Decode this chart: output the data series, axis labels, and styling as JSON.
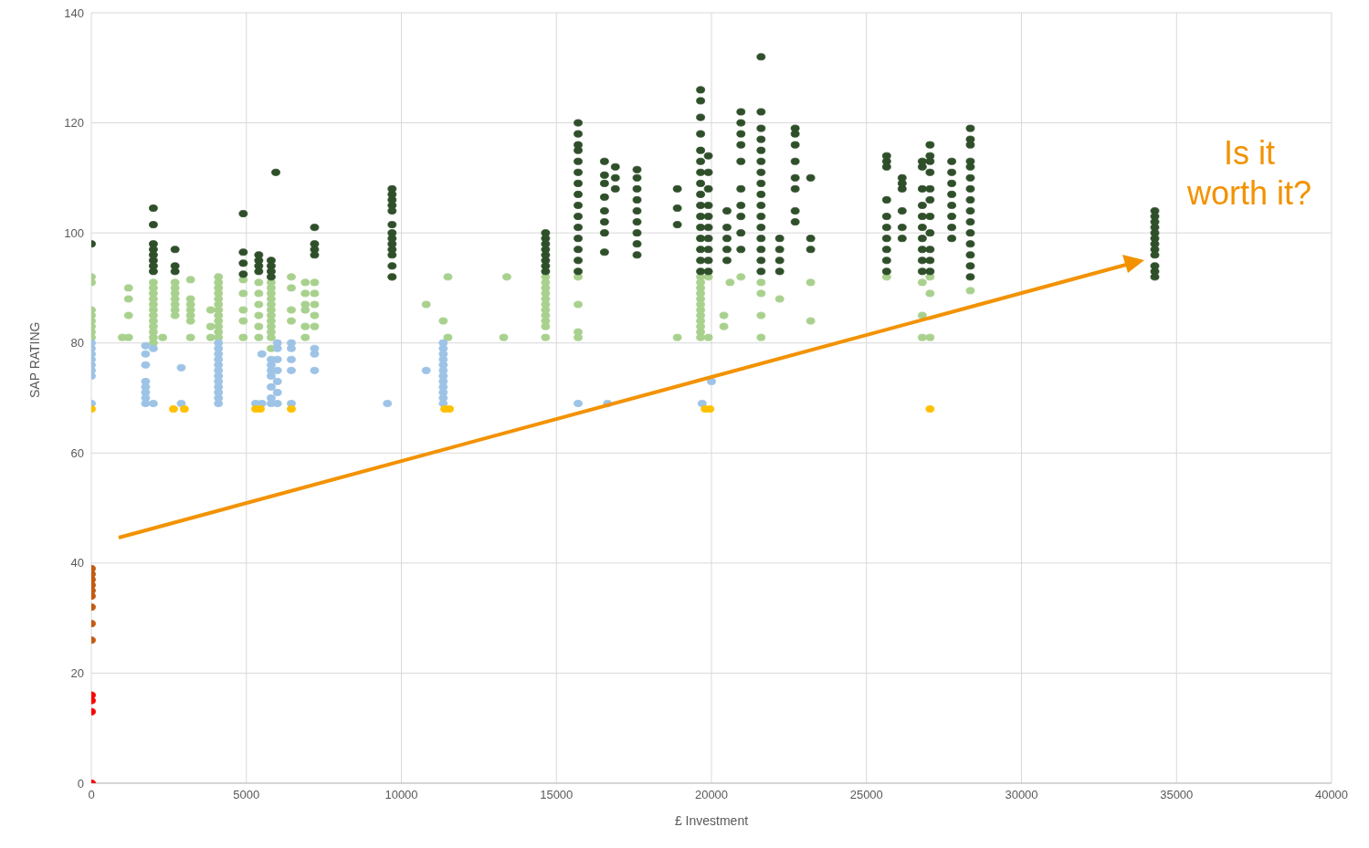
{
  "chart_data": {
    "type": "scatter",
    "xlabel": "£ Investment",
    "ylabel": "SAP RATING",
    "xlim": [
      0,
      40000
    ],
    "xticks": [
      0,
      5000,
      10000,
      15000,
      20000,
      25000,
      30000,
      35000,
      40000
    ],
    "ylim": [
      0,
      140
    ],
    "yticks": [
      0,
      20,
      40,
      60,
      80,
      100,
      120,
      140
    ],
    "grid": true,
    "legend": false,
    "marker": "circle",
    "annotations": [
      "Is it worth it?"
    ],
    "series": [
      {
        "color": "#a9d18e",
        "x": [
          0,
          0,
          0,
          0,
          0,
          0,
          0,
          0,
          1000,
          1200,
          1200,
          1200,
          1200,
          2000,
          2000,
          2000,
          2000,
          2000,
          2000,
          2000,
          2000,
          2000,
          2000,
          2000,
          2000,
          2300,
          2700,
          2700,
          2700,
          2700,
          2700,
          2700,
          2700,
          3200,
          3200,
          3200,
          3200,
          3200,
          3200,
          3200,
          3850,
          3850,
          3850,
          4100,
          4100,
          4100,
          4100,
          4100,
          4100,
          4100,
          4100,
          4100,
          4100,
          4100,
          4100,
          4900,
          4900,
          4900,
          4900,
          4900,
          5400,
          5400,
          5400,
          5400,
          5400,
          5400,
          5800,
          5800,
          5800,
          5800,
          5800,
          5800,
          5800,
          5800,
          5800,
          5800,
          5800,
          5800,
          6450,
          6450,
          6450,
          6450,
          6900,
          6900,
          6900,
          6900,
          6900,
          6900,
          7200,
          7200,
          7200,
          7200,
          7200,
          9700,
          10800,
          11350,
          11500,
          11500,
          13300,
          13400,
          14650,
          14650,
          14650,
          14650,
          14650,
          14650,
          14650,
          14650,
          14650,
          14650,
          14650,
          15700,
          15700,
          15700,
          15700,
          18900,
          19650,
          19650,
          19650,
          19650,
          19650,
          19650,
          19650,
          19650,
          19650,
          19650,
          19650,
          19650,
          19900,
          19900,
          20400,
          20400,
          20600,
          20950,
          21600,
          21600,
          21600,
          21600,
          22200,
          23200,
          23200,
          25650,
          26800,
          26800,
          26800,
          27050,
          27050,
          27050,
          28350
        ],
        "values": [
          81,
          82,
          83,
          84,
          85,
          86,
          91,
          92,
          81,
          81,
          85,
          88,
          90,
          80,
          81,
          82,
          83,
          84,
          85,
          86,
          87,
          88,
          89,
          90,
          91,
          81,
          85,
          86,
          87,
          88,
          89,
          90,
          91,
          81,
          84,
          85,
          86,
          87,
          88,
          91.5,
          81,
          83,
          86,
          81,
          82,
          83,
          84,
          85,
          86,
          87,
          88,
          89,
          90,
          91,
          92,
          81,
          84,
          86,
          89,
          91.5,
          81,
          83,
          85,
          87,
          89,
          91,
          79,
          81,
          82,
          83,
          84,
          85,
          86,
          87,
          88,
          89,
          90,
          91,
          84,
          86,
          90,
          92,
          81,
          83,
          86,
          87,
          89,
          91,
          83,
          85,
          87,
          89,
          91,
          92,
          87,
          84,
          81,
          92,
          81,
          92,
          81,
          83,
          84,
          85,
          86,
          87,
          88,
          89,
          90,
          91,
          92,
          81,
          82,
          87,
          92,
          81,
          81,
          82,
          83,
          84,
          85,
          86,
          87,
          88,
          89,
          90,
          91,
          92,
          81,
          92,
          83,
          85,
          91,
          92,
          81,
          85,
          89,
          91,
          88,
          84,
          91,
          92,
          81,
          85,
          91,
          81,
          89,
          92,
          89.5
        ]
      },
      {
        "color": "#9dc3e6",
        "x": [
          0,
          0,
          0,
          0,
          0,
          0,
          0,
          0,
          1750,
          1750,
          1750,
          1750,
          1750,
          1750,
          1750,
          1750,
          2000,
          2000,
          2900,
          2900,
          4100,
          4100,
          4100,
          4100,
          4100,
          4100,
          4100,
          4100,
          4100,
          4100,
          4100,
          4100,
          5300,
          5500,
          5500,
          5800,
          5800,
          5800,
          5800,
          5800,
          5800,
          5800,
          6000,
          6000,
          6000,
          6000,
          6000,
          6000,
          6000,
          6450,
          6450,
          6450,
          6450,
          6450,
          7200,
          7200,
          7200,
          9550,
          10800,
          11350,
          11350,
          11350,
          11350,
          11350,
          11350,
          11350,
          11350,
          11350,
          11350,
          11350,
          11350,
          15700,
          16650,
          19700,
          20000
        ],
        "values": [
          69,
          74,
          75,
          76,
          77,
          78,
          79,
          80,
          69,
          70,
          71,
          72,
          73,
          76,
          78,
          79.5,
          69,
          79,
          69,
          75.5,
          69,
          70,
          71,
          72,
          73,
          74,
          75,
          76,
          77,
          78,
          79,
          80,
          69,
          69,
          78,
          69,
          70,
          72,
          74,
          75,
          76,
          77,
          69,
          71,
          73,
          75,
          77,
          79,
          80,
          69,
          75,
          77,
          79,
          80,
          75,
          78,
          79,
          69,
          75,
          69,
          70,
          71,
          72,
          73,
          74,
          75,
          76,
          77,
          78,
          79,
          80,
          69,
          69,
          69,
          73
        ]
      },
      {
        "color": "#2f4f2a",
        "x": [
          0,
          2000,
          2000,
          2000,
          2000,
          2000,
          2000,
          2000,
          2000,
          2700,
          2700,
          2700,
          4900,
          4900,
          4900,
          4900,
          5400,
          5400,
          5400,
          5400,
          5800,
          5800,
          5800,
          5800,
          5950,
          7200,
          7200,
          7200,
          7200,
          9700,
          9700,
          9700,
          9700,
          9700,
          9700,
          9700,
          9700,
          9700,
          9700,
          9700,
          9700,
          9700,
          14650,
          14650,
          14650,
          14650,
          14650,
          14650,
          14650,
          14650,
          15700,
          15700,
          15700,
          15700,
          15700,
          15700,
          15700,
          15700,
          15700,
          15700,
          15700,
          15700,
          15700,
          15700,
          15700,
          16550,
          16550,
          16550,
          16550,
          16550,
          16550,
          16550,
          16550,
          16900,
          16900,
          16900,
          17600,
          17600,
          17600,
          17600,
          17600,
          17600,
          17600,
          17600,
          17600,
          18900,
          18900,
          18900,
          19650,
          19650,
          19650,
          19650,
          19650,
          19650,
          19650,
          19650,
          19650,
          19650,
          19650,
          19650,
          19650,
          19650,
          19650,
          19650,
          19900,
          19900,
          19900,
          19900,
          19900,
          19900,
          19900,
          19900,
          19900,
          19900,
          20500,
          20500,
          20500,
          20500,
          20500,
          20950,
          20950,
          20950,
          20950,
          20950,
          20950,
          20950,
          20950,
          20950,
          20950,
          21600,
          21600,
          21600,
          21600,
          21600,
          21600,
          21600,
          21600,
          21600,
          21600,
          21600,
          21600,
          21600,
          21600,
          21600,
          21600,
          22200,
          22200,
          22200,
          22200,
          22700,
          22700,
          22700,
          22700,
          22700,
          22700,
          22700,
          22700,
          23200,
          23200,
          23200,
          25650,
          25650,
          25650,
          25650,
          25650,
          25650,
          25650,
          25650,
          25650,
          25650,
          26150,
          26150,
          26150,
          26150,
          26150,
          26150,
          26800,
          26800,
          26800,
          26800,
          26800,
          26800,
          26800,
          26800,
          26800,
          26800,
          27050,
          27050,
          27050,
          27050,
          27050,
          27050,
          27050,
          27050,
          27050,
          27050,
          27050,
          27750,
          27750,
          27750,
          27750,
          27750,
          27750,
          27750,
          27750,
          28350,
          28350,
          28350,
          28350,
          28350,
          28350,
          28350,
          28350,
          28350,
          28350,
          28350,
          28350,
          28350,
          28350,
          28350,
          34300,
          34300,
          34300,
          34300,
          34300,
          34300,
          34300,
          34300,
          34300,
          34300,
          34300,
          34300
        ],
        "values": [
          98,
          93,
          94,
          95,
          96,
          97,
          98,
          101.5,
          104.5,
          93,
          94,
          97,
          92.5,
          94.5,
          96.5,
          103.5,
          93,
          94,
          95,
          96,
          92,
          93,
          94,
          95,
          111,
          96,
          97,
          98,
          101,
          92,
          94,
          96,
          97,
          98,
          99,
          100,
          101.5,
          104,
          105,
          106,
          107,
          108,
          93,
          94,
          95,
          96,
          97,
          98,
          99,
          100,
          93,
          95,
          97,
          99,
          101,
          103,
          105,
          107,
          109,
          111,
          113,
          115,
          116,
          118,
          120,
          96.5,
          100,
          102,
          104,
          106.5,
          109,
          110.5,
          113,
          108,
          110,
          112,
          96,
          98,
          100,
          102,
          104,
          106,
          108,
          110,
          111.5,
          101.5,
          104.5,
          108,
          93,
          95,
          97,
          99,
          101,
          103,
          105,
          107,
          109,
          111,
          113,
          115,
          118,
          121,
          124,
          126,
          93,
          95,
          97,
          99,
          101,
          103,
          105,
          108,
          111,
          114,
          95,
          97,
          99,
          101,
          104,
          97,
          100,
          103,
          105,
          108,
          113,
          116,
          118,
          120,
          122,
          93,
          95,
          97,
          99,
          101,
          103,
          105,
          107,
          109,
          111,
          113,
          115,
          117,
          119,
          122,
          132,
          93,
          95,
          97,
          99,
          102,
          104,
          108,
          110,
          113,
          116,
          118,
          119,
          97,
          99,
          110,
          93,
          95,
          97,
          99,
          101,
          103,
          106,
          112,
          113,
          114,
          99,
          101,
          104,
          108,
          109,
          110,
          93,
          95,
          97,
          99,
          101,
          103,
          105,
          108,
          112,
          113,
          93,
          95,
          97,
          100,
          103,
          106,
          108,
          111,
          113,
          114,
          116,
          99,
          101,
          103,
          105,
          107,
          109,
          111,
          113,
          92,
          94,
          96,
          98,
          100,
          102,
          104,
          106,
          108,
          110,
          112,
          113,
          116,
          117,
          119,
          92,
          93,
          94,
          96,
          97,
          98,
          99,
          100,
          101,
          102,
          103,
          104
        ]
      },
      {
        "color": "#ffc000",
        "x": [
          0,
          2650,
          3000,
          5300,
          5450,
          6450,
          11400,
          11550,
          19800,
          19950,
          27050
        ],
        "values": [
          68,
          68,
          68,
          68,
          68,
          68,
          68,
          68,
          68,
          68,
          68
        ]
      },
      {
        "color": "#c55a11",
        "x": [
          0,
          0,
          0,
          0,
          0,
          0,
          0,
          0,
          0
        ],
        "values": [
          39,
          38,
          37,
          36,
          35,
          34,
          32,
          29,
          26
        ]
      },
      {
        "color": "#ff0000",
        "x": [
          0,
          0,
          0,
          0
        ],
        "values": [
          16,
          15,
          13,
          0
        ]
      }
    ]
  }
}
